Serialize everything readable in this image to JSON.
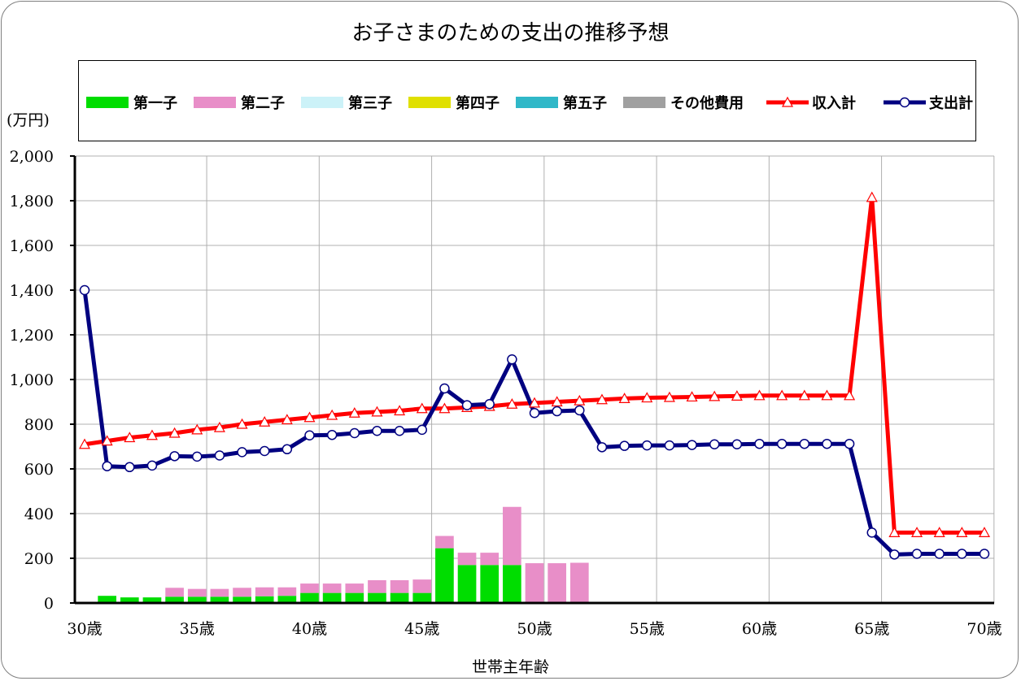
{
  "chart_data": {
    "type": "bar+line",
    "title": "お子さまのための支出の推移予想",
    "ylabel": "(万円)",
    "xlabel": "世帯主年齢",
    "ylim": [
      0,
      2000
    ],
    "yticks": [
      0,
      200,
      400,
      600,
      800,
      1000,
      1200,
      1400,
      1600,
      1800,
      2000
    ],
    "ytick_labels": [
      "0",
      "200",
      "400",
      "600",
      "800",
      "1,000",
      "1,200",
      "1,400",
      "1,600",
      "1,800",
      "2,000"
    ],
    "xtick_labels": [
      "30歳",
      "35歳",
      "40歳",
      "45歳",
      "50歳",
      "55歳",
      "60歳",
      "65歳",
      "70歳"
    ],
    "x_ages": [
      30,
      31,
      32,
      33,
      34,
      35,
      36,
      37,
      38,
      39,
      40,
      41,
      42,
      43,
      44,
      45,
      46,
      47,
      48,
      49,
      50,
      51,
      52,
      53,
      54,
      55,
      56,
      57,
      58,
      59,
      60,
      61,
      62,
      63,
      64,
      65,
      66,
      67,
      68,
      69,
      70
    ],
    "bar_series": [
      {
        "name": "第一子",
        "color": "#00dd00",
        "values": [
          0,
          32,
          25,
          25,
          28,
          28,
          28,
          28,
          30,
          32,
          45,
          45,
          45,
          45,
          45,
          45,
          245,
          170,
          170,
          170,
          0,
          0,
          0,
          0,
          0,
          0,
          0,
          0,
          0,
          0,
          0,
          0,
          0,
          0,
          0,
          0,
          0,
          0,
          0,
          0,
          0
        ]
      },
      {
        "name": "第二子",
        "color": "#e88ec8",
        "values": [
          0,
          0,
          0,
          0,
          40,
          35,
          35,
          40,
          40,
          38,
          42,
          42,
          42,
          57,
          57,
          60,
          55,
          55,
          55,
          260,
          178,
          178,
          180,
          0,
          0,
          0,
          0,
          0,
          0,
          0,
          0,
          0,
          0,
          0,
          0,
          0,
          0,
          0,
          0,
          0,
          0
        ]
      },
      {
        "name": "第三子",
        "color": "#ccf2f8",
        "values": []
      },
      {
        "name": "第四子",
        "color": "#e0e000",
        "values": []
      },
      {
        "name": "第五子",
        "color": "#30b8c8",
        "values": []
      },
      {
        "name": "その他費用",
        "color": "#a0a0a0",
        "values": []
      }
    ],
    "line_series": [
      {
        "name": "収入計",
        "color": "#ff0000",
        "marker": "triangle",
        "values": [
          710,
          725,
          740,
          750,
          760,
          775,
          785,
          800,
          810,
          820,
          830,
          840,
          850,
          855,
          860,
          870,
          870,
          875,
          880,
          890,
          895,
          900,
          905,
          910,
          915,
          918,
          920,
          922,
          924,
          926,
          928,
          928,
          928,
          928,
          928,
          1815,
          315,
          315,
          315,
          315,
          315
        ]
      },
      {
        "name": "支出計",
        "color": "#000080",
        "marker": "circle",
        "values": [
          1400,
          612,
          608,
          615,
          657,
          655,
          660,
          675,
          680,
          688,
          750,
          752,
          760,
          770,
          770,
          775,
          960,
          885,
          890,
          1090,
          850,
          858,
          862,
          697,
          703,
          705,
          705,
          707,
          710,
          710,
          712,
          712,
          712,
          712,
          712,
          315,
          217,
          220,
          220,
          220,
          220
        ]
      }
    ],
    "grid": true,
    "legend_placement": "top"
  }
}
